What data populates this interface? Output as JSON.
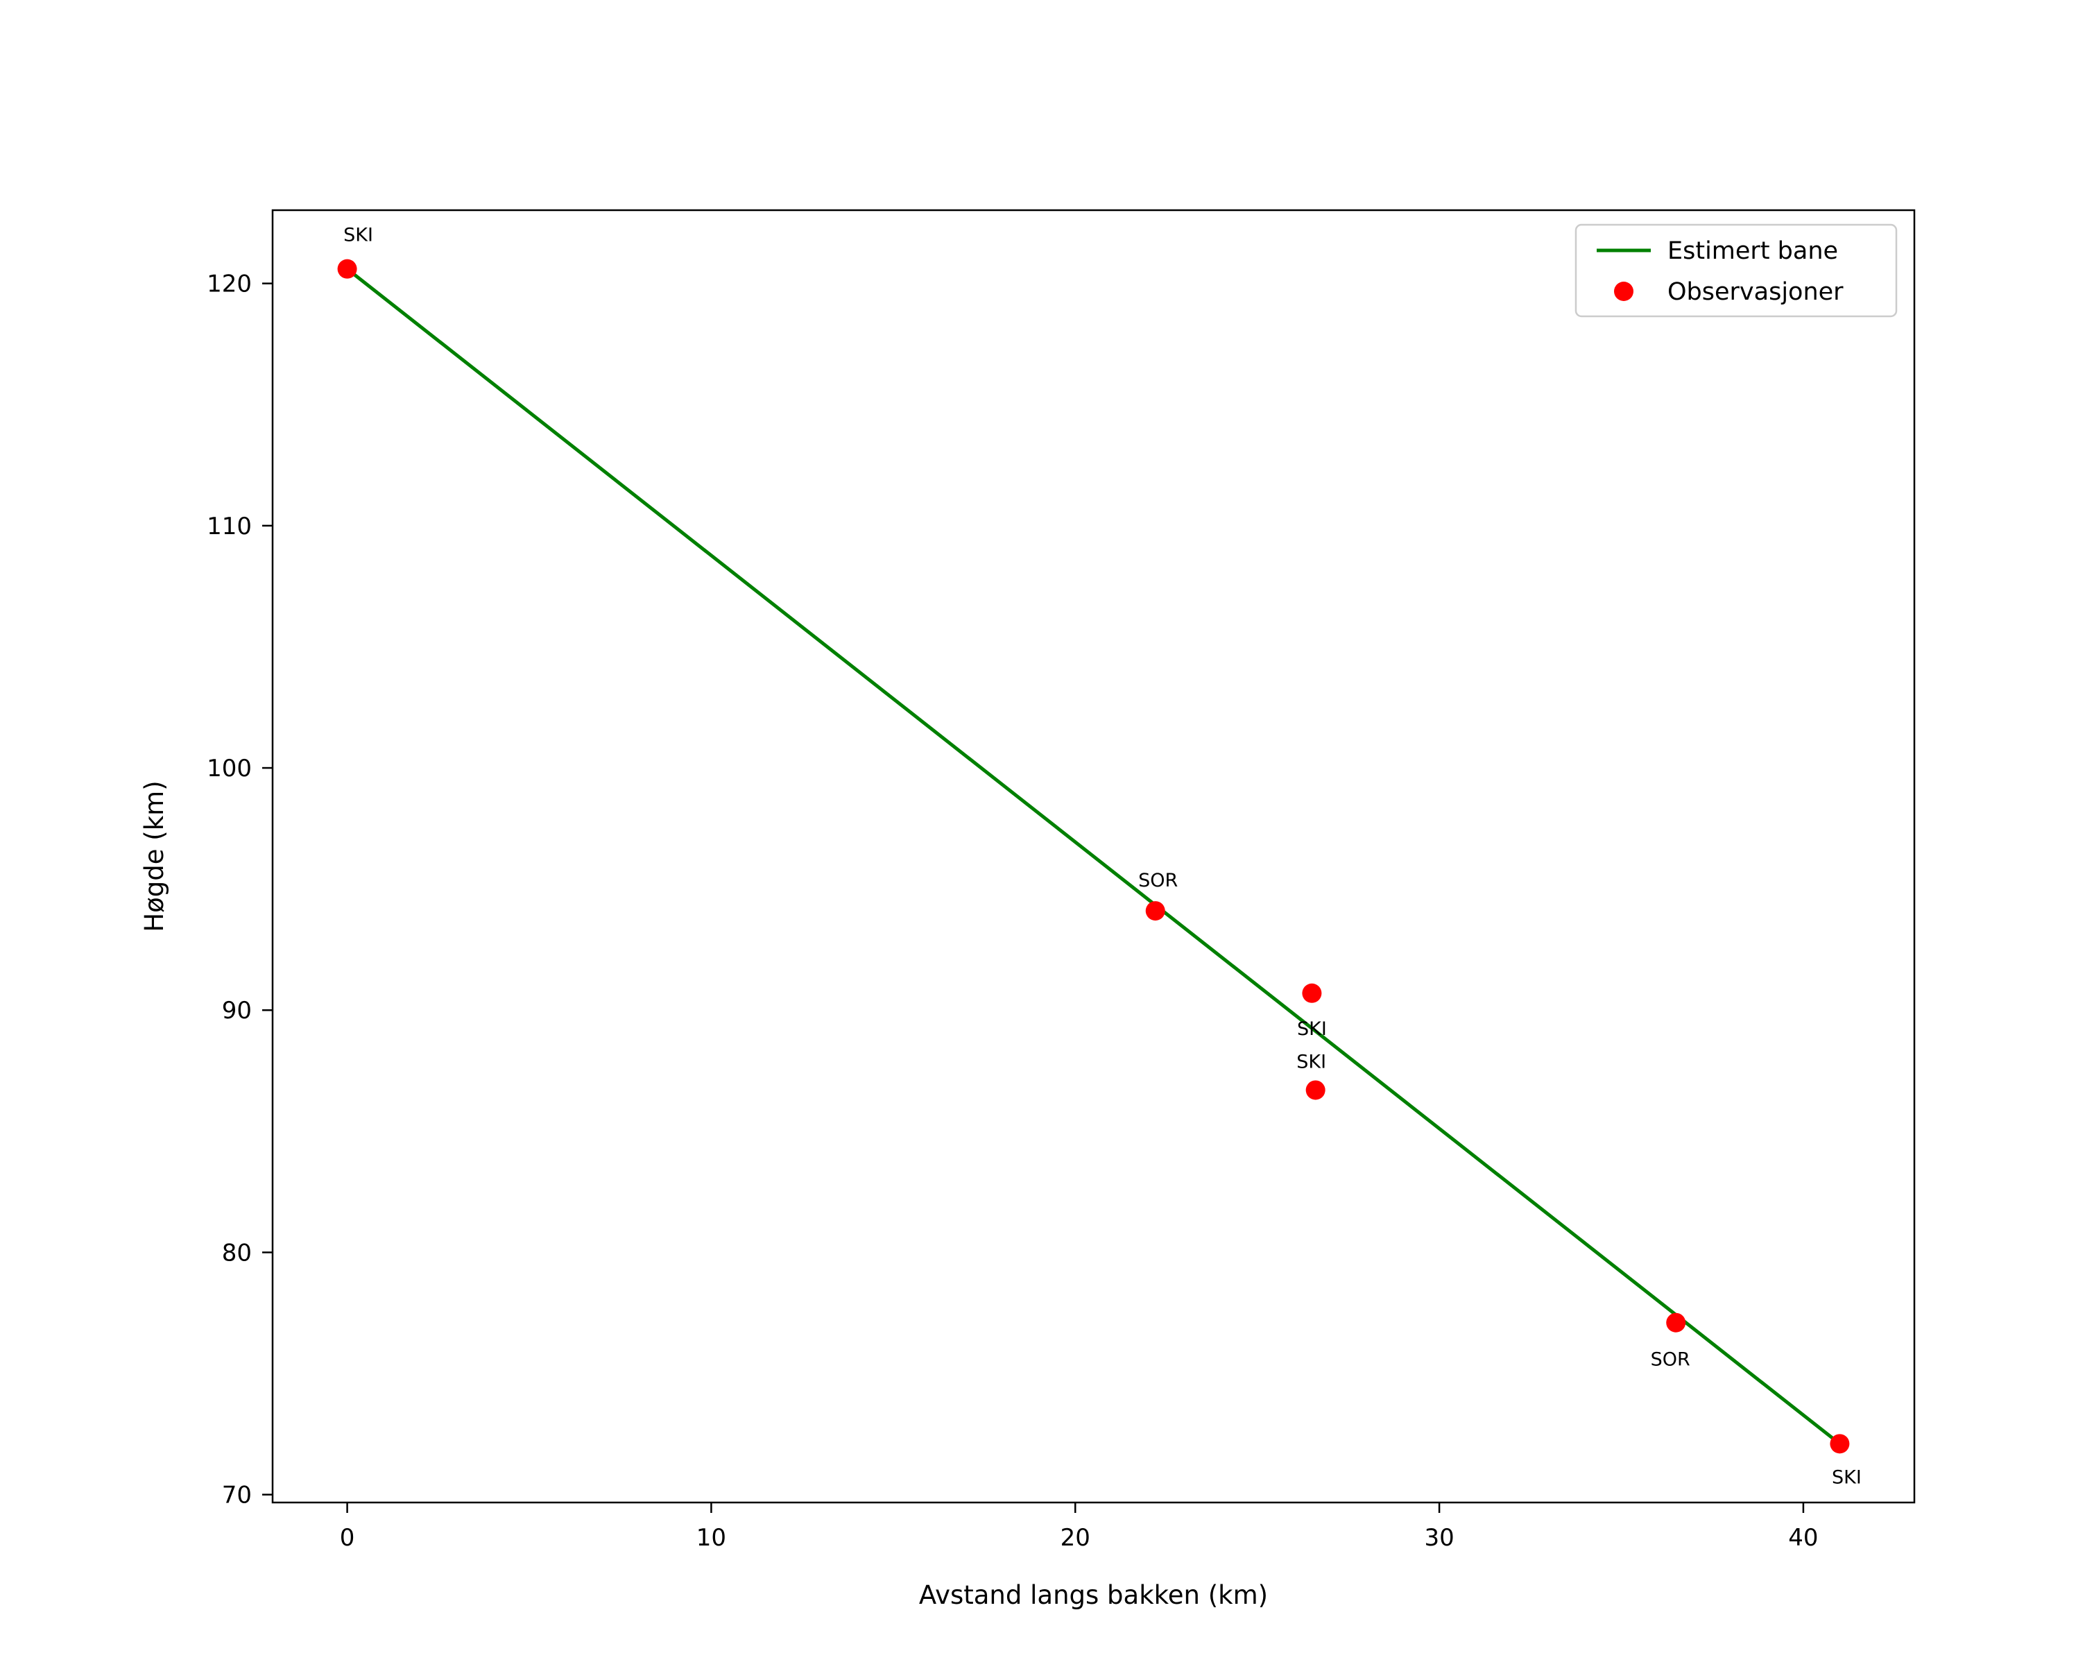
{
  "chart_data": {
    "type": "line+scatter",
    "title": "",
    "xlabel": "Avstand langs bakken (km)",
    "ylabel": "Høgde (km)",
    "xlim": [
      -2.05,
      43.05
    ],
    "ylim": [
      69.675,
      123.025
    ],
    "x_ticks": [
      0,
      10,
      20,
      30,
      40
    ],
    "y_ticks": [
      70,
      80,
      90,
      100,
      110,
      120
    ],
    "grid": false,
    "legend_position": "upper-right",
    "line_color": "#008000",
    "point_color": "#ff0000",
    "spine_color": "#000000",
    "estimated_path": {
      "name": "Estimert bane",
      "points": [
        [
          0.0,
          120.6
        ],
        [
          41.0,
          72.1
        ]
      ]
    },
    "observations": {
      "name": "Observasjoner",
      "points": [
        {
          "x": 0.0,
          "y": 120.6,
          "label": "SKI",
          "label_offset": [
            16,
            -40
          ]
        },
        {
          "x": 22.2,
          "y": 94.1,
          "label": "SOR",
          "label_offset": [
            4,
            -35
          ]
        },
        {
          "x": 26.5,
          "y": 90.7,
          "label": "SKI",
          "label_offset": [
            0,
            60
          ]
        },
        {
          "x": 26.6,
          "y": 86.7,
          "label": "SKI",
          "label_offset": [
            -6,
            -32
          ]
        },
        {
          "x": 36.5,
          "y": 77.1,
          "label": "SOR",
          "label_offset": [
            -8,
            62
          ]
        },
        {
          "x": 41.0,
          "y": 72.1,
          "label": "SKI",
          "label_offset": [
            10,
            57
          ]
        }
      ]
    },
    "legend": [
      {
        "label": "Estimert bane",
        "marker": "line",
        "color": "#008000"
      },
      {
        "label": "Observasjoner",
        "marker": "circle",
        "color": "#ff0000"
      }
    ]
  }
}
